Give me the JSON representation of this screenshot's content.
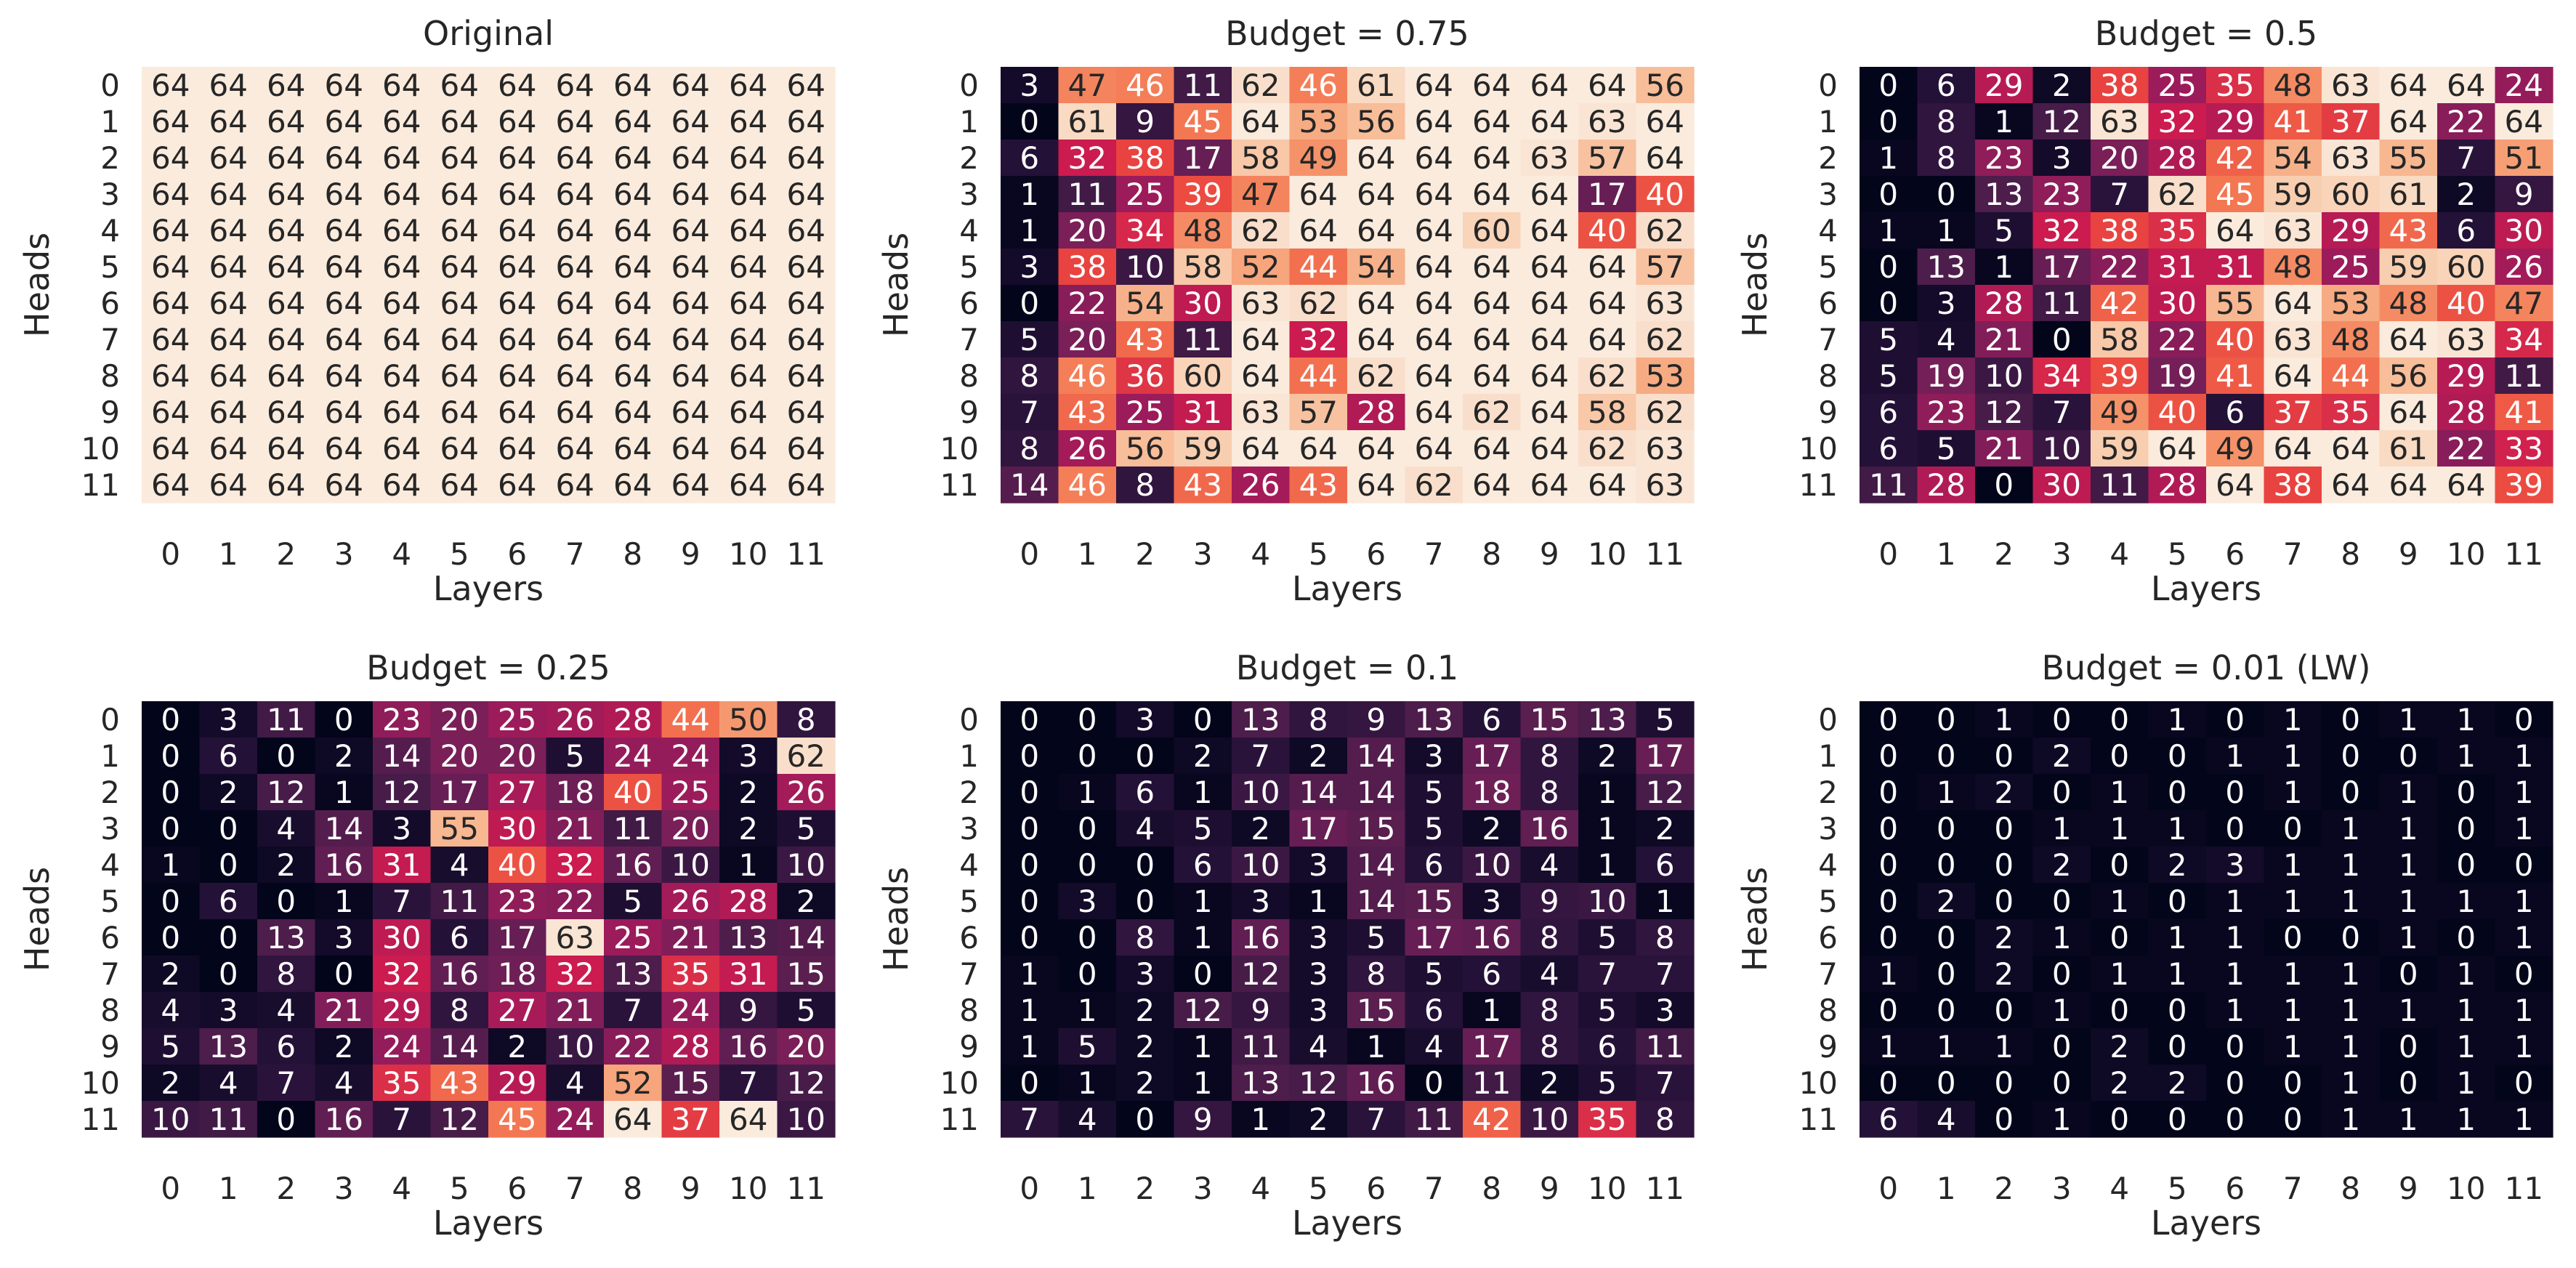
{
  "figure": {
    "type": "heatmap-grid",
    "colormap": "rocket",
    "vmin": 0,
    "vmax": 64
  },
  "chart_data": [
    {
      "type": "heatmap",
      "title": "Original",
      "xlabel": "Layers",
      "ylabel": "Heads",
      "xticks": [
        "0",
        "1",
        "2",
        "3",
        "4",
        "5",
        "6",
        "7",
        "8",
        "9",
        "10",
        "11"
      ],
      "yticks": [
        "0",
        "1",
        "2",
        "3",
        "4",
        "5",
        "6",
        "7",
        "8",
        "9",
        "10",
        "11"
      ],
      "values": [
        [
          64,
          64,
          64,
          64,
          64,
          64,
          64,
          64,
          64,
          64,
          64,
          64
        ],
        [
          64,
          64,
          64,
          64,
          64,
          64,
          64,
          64,
          64,
          64,
          64,
          64
        ],
        [
          64,
          64,
          64,
          64,
          64,
          64,
          64,
          64,
          64,
          64,
          64,
          64
        ],
        [
          64,
          64,
          64,
          64,
          64,
          64,
          64,
          64,
          64,
          64,
          64,
          64
        ],
        [
          64,
          64,
          64,
          64,
          64,
          64,
          64,
          64,
          64,
          64,
          64,
          64
        ],
        [
          64,
          64,
          64,
          64,
          64,
          64,
          64,
          64,
          64,
          64,
          64,
          64
        ],
        [
          64,
          64,
          64,
          64,
          64,
          64,
          64,
          64,
          64,
          64,
          64,
          64
        ],
        [
          64,
          64,
          64,
          64,
          64,
          64,
          64,
          64,
          64,
          64,
          64,
          64
        ],
        [
          64,
          64,
          64,
          64,
          64,
          64,
          64,
          64,
          64,
          64,
          64,
          64
        ],
        [
          64,
          64,
          64,
          64,
          64,
          64,
          64,
          64,
          64,
          64,
          64,
          64
        ],
        [
          64,
          64,
          64,
          64,
          64,
          64,
          64,
          64,
          64,
          64,
          64,
          64
        ],
        [
          64,
          64,
          64,
          64,
          64,
          64,
          64,
          64,
          64,
          64,
          64,
          64
        ]
      ]
    },
    {
      "type": "heatmap",
      "title": "Budget = 0.75",
      "xlabel": "Layers",
      "ylabel": "Heads",
      "xticks": [
        "0",
        "1",
        "2",
        "3",
        "4",
        "5",
        "6",
        "7",
        "8",
        "9",
        "10",
        "11"
      ],
      "yticks": [
        "0",
        "1",
        "2",
        "3",
        "4",
        "5",
        "6",
        "7",
        "8",
        "9",
        "10",
        "11"
      ],
      "values": [
        [
          3,
          47,
          46,
          11,
          62,
          46,
          61,
          64,
          64,
          64,
          64,
          56
        ],
        [
          0,
          61,
          9,
          45,
          64,
          53,
          56,
          64,
          64,
          64,
          63,
          64
        ],
        [
          6,
          32,
          38,
          17,
          58,
          49,
          64,
          64,
          64,
          63,
          57,
          64
        ],
        [
          1,
          11,
          25,
          39,
          47,
          64,
          64,
          64,
          64,
          64,
          17,
          40
        ],
        [
          1,
          20,
          34,
          48,
          62,
          64,
          64,
          64,
          60,
          64,
          40,
          62
        ],
        [
          3,
          38,
          10,
          58,
          52,
          44,
          54,
          64,
          64,
          64,
          64,
          57
        ],
        [
          0,
          22,
          54,
          30,
          63,
          62,
          64,
          64,
          64,
          64,
          64,
          63
        ],
        [
          5,
          20,
          43,
          11,
          64,
          32,
          64,
          64,
          64,
          64,
          64,
          62
        ],
        [
          8,
          46,
          36,
          60,
          64,
          44,
          62,
          64,
          64,
          64,
          62,
          53
        ],
        [
          7,
          43,
          25,
          31,
          63,
          57,
          28,
          64,
          62,
          64,
          58,
          62
        ],
        [
          8,
          26,
          56,
          59,
          64,
          64,
          64,
          64,
          64,
          64,
          62,
          63
        ],
        [
          14,
          46,
          8,
          43,
          26,
          43,
          64,
          62,
          64,
          64,
          64,
          63
        ]
      ]
    },
    {
      "type": "heatmap",
      "title": "Budget = 0.5",
      "xlabel": "Layers",
      "ylabel": "Heads",
      "xticks": [
        "0",
        "1",
        "2",
        "3",
        "4",
        "5",
        "6",
        "7",
        "8",
        "9",
        "10",
        "11"
      ],
      "yticks": [
        "0",
        "1",
        "2",
        "3",
        "4",
        "5",
        "6",
        "7",
        "8",
        "9",
        "10",
        "11"
      ],
      "values": [
        [
          0,
          6,
          29,
          2,
          38,
          25,
          35,
          48,
          63,
          64,
          64,
          24
        ],
        [
          0,
          8,
          1,
          12,
          63,
          32,
          29,
          41,
          37,
          64,
          22,
          64
        ],
        [
          1,
          8,
          23,
          3,
          20,
          28,
          42,
          54,
          63,
          55,
          7,
          51
        ],
        [
          0,
          0,
          13,
          23,
          7,
          62,
          45,
          59,
          60,
          61,
          2,
          9
        ],
        [
          1,
          1,
          5,
          32,
          38,
          35,
          64,
          63,
          29,
          43,
          6,
          30
        ],
        [
          0,
          13,
          1,
          17,
          22,
          31,
          31,
          48,
          25,
          59,
          60,
          26
        ],
        [
          0,
          3,
          28,
          11,
          42,
          30,
          55,
          64,
          53,
          48,
          40,
          47
        ],
        [
          5,
          4,
          21,
          0,
          58,
          22,
          40,
          63,
          48,
          64,
          63,
          34
        ],
        [
          5,
          19,
          10,
          34,
          39,
          19,
          41,
          64,
          44,
          56,
          29,
          11
        ],
        [
          6,
          23,
          12,
          7,
          49,
          40,
          6,
          37,
          35,
          64,
          28,
          41
        ],
        [
          6,
          5,
          21,
          10,
          59,
          64,
          49,
          64,
          64,
          61,
          22,
          33
        ],
        [
          11,
          28,
          0,
          30,
          11,
          28,
          64,
          38,
          64,
          64,
          64,
          39
        ]
      ]
    },
    {
      "type": "heatmap",
      "title": "Budget = 0.25",
      "xlabel": "Layers",
      "ylabel": "Heads",
      "xticks": [
        "0",
        "1",
        "2",
        "3",
        "4",
        "5",
        "6",
        "7",
        "8",
        "9",
        "10",
        "11"
      ],
      "yticks": [
        "0",
        "1",
        "2",
        "3",
        "4",
        "5",
        "6",
        "7",
        "8",
        "9",
        "10",
        "11"
      ],
      "values": [
        [
          0,
          3,
          11,
          0,
          23,
          20,
          25,
          26,
          28,
          44,
          50,
          8
        ],
        [
          0,
          6,
          0,
          2,
          14,
          20,
          20,
          5,
          24,
          24,
          3,
          62
        ],
        [
          0,
          2,
          12,
          1,
          12,
          17,
          27,
          18,
          40,
          25,
          2,
          26
        ],
        [
          0,
          0,
          4,
          14,
          3,
          55,
          30,
          21,
          11,
          20,
          2,
          5
        ],
        [
          1,
          0,
          2,
          16,
          31,
          4,
          40,
          32,
          16,
          10,
          1,
          10
        ],
        [
          0,
          6,
          0,
          1,
          7,
          11,
          23,
          22,
          5,
          26,
          28,
          2
        ],
        [
          0,
          0,
          13,
          3,
          30,
          6,
          17,
          63,
          25,
          21,
          13,
          14
        ],
        [
          2,
          0,
          8,
          0,
          32,
          16,
          18,
          32,
          13,
          35,
          31,
          15
        ],
        [
          4,
          3,
          4,
          21,
          29,
          8,
          27,
          21,
          7,
          24,
          9,
          5
        ],
        [
          5,
          13,
          6,
          2,
          24,
          14,
          2,
          10,
          22,
          28,
          16,
          20
        ],
        [
          2,
          4,
          7,
          4,
          35,
          43,
          29,
          4,
          52,
          15,
          7,
          12
        ],
        [
          10,
          11,
          0,
          16,
          7,
          12,
          45,
          24,
          64,
          37,
          64,
          10
        ]
      ]
    },
    {
      "type": "heatmap",
      "title": "Budget = 0.1",
      "xlabel": "Layers",
      "ylabel": "Heads",
      "xticks": [
        "0",
        "1",
        "2",
        "3",
        "4",
        "5",
        "6",
        "7",
        "8",
        "9",
        "10",
        "11"
      ],
      "yticks": [
        "0",
        "1",
        "2",
        "3",
        "4",
        "5",
        "6",
        "7",
        "8",
        "9",
        "10",
        "11"
      ],
      "values": [
        [
          0,
          0,
          3,
          0,
          13,
          8,
          9,
          13,
          6,
          15,
          13,
          5
        ],
        [
          0,
          0,
          0,
          2,
          7,
          2,
          14,
          3,
          17,
          8,
          2,
          17
        ],
        [
          0,
          1,
          6,
          1,
          10,
          14,
          14,
          5,
          18,
          8,
          1,
          12
        ],
        [
          0,
          0,
          4,
          5,
          2,
          17,
          15,
          5,
          2,
          16,
          1,
          2
        ],
        [
          0,
          0,
          0,
          6,
          10,
          3,
          14,
          6,
          10,
          4,
          1,
          6
        ],
        [
          0,
          3,
          0,
          1,
          3,
          1,
          14,
          15,
          3,
          9,
          10,
          1
        ],
        [
          0,
          0,
          8,
          1,
          16,
          3,
          5,
          17,
          16,
          8,
          5,
          8
        ],
        [
          1,
          0,
          3,
          0,
          12,
          3,
          8,
          5,
          6,
          4,
          7,
          7
        ],
        [
          1,
          1,
          2,
          12,
          9,
          3,
          15,
          6,
          1,
          8,
          5,
          3
        ],
        [
          1,
          5,
          2,
          1,
          11,
          4,
          1,
          4,
          17,
          8,
          6,
          11
        ],
        [
          0,
          1,
          2,
          1,
          13,
          12,
          16,
          0,
          11,
          2,
          5,
          7
        ],
        [
          7,
          4,
          0,
          9,
          1,
          2,
          7,
          11,
          42,
          10,
          35,
          8
        ]
      ]
    },
    {
      "type": "heatmap",
      "title": "Budget = 0.01 (LW)",
      "xlabel": "Layers",
      "ylabel": "Heads",
      "xticks": [
        "0",
        "1",
        "2",
        "3",
        "4",
        "5",
        "6",
        "7",
        "8",
        "9",
        "10",
        "11"
      ],
      "yticks": [
        "0",
        "1",
        "2",
        "3",
        "4",
        "5",
        "6",
        "7",
        "8",
        "9",
        "10",
        "11"
      ],
      "values": [
        [
          0,
          0,
          1,
          0,
          0,
          1,
          0,
          1,
          0,
          1,
          1,
          0
        ],
        [
          0,
          0,
          0,
          2,
          0,
          0,
          1,
          1,
          0,
          0,
          1,
          1
        ],
        [
          0,
          1,
          2,
          0,
          1,
          0,
          0,
          1,
          0,
          1,
          0,
          1
        ],
        [
          0,
          0,
          0,
          1,
          1,
          1,
          0,
          0,
          1,
          1,
          0,
          1
        ],
        [
          0,
          0,
          0,
          2,
          0,
          2,
          3,
          1,
          1,
          1,
          0,
          0
        ],
        [
          0,
          2,
          0,
          0,
          1,
          0,
          1,
          1,
          1,
          1,
          1,
          1
        ],
        [
          0,
          0,
          2,
          1,
          0,
          1,
          1,
          0,
          0,
          1,
          0,
          1
        ],
        [
          1,
          0,
          2,
          0,
          1,
          1,
          1,
          1,
          1,
          0,
          1,
          0
        ],
        [
          0,
          0,
          0,
          1,
          0,
          0,
          1,
          1,
          1,
          1,
          1,
          1
        ],
        [
          1,
          1,
          1,
          0,
          2,
          0,
          0,
          1,
          1,
          0,
          1,
          1
        ],
        [
          0,
          0,
          0,
          0,
          2,
          2,
          0,
          0,
          1,
          0,
          1,
          0
        ],
        [
          6,
          4,
          0,
          1,
          0,
          0,
          0,
          0,
          1,
          1,
          1,
          1
        ]
      ]
    }
  ]
}
